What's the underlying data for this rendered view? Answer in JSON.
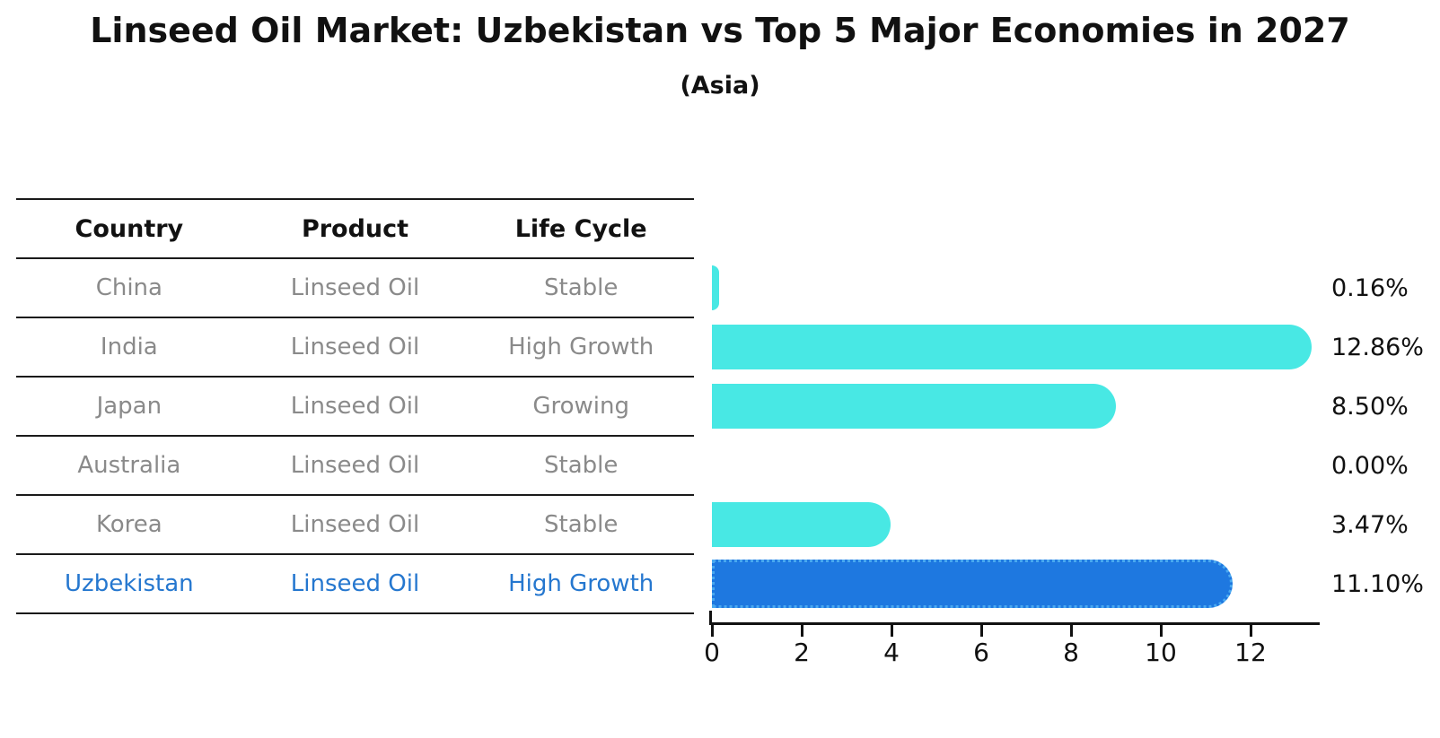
{
  "header": {
    "title": "Linseed Oil Market: Uzbekistan vs Top 5 Major Economies in 2027",
    "subtitle": "(Asia)"
  },
  "table": {
    "headers": [
      "Country",
      "Product",
      "Life Cycle"
    ],
    "rows": [
      {
        "country": "China",
        "product": "Linseed Oil",
        "life_cycle": "Stable",
        "highlight": false
      },
      {
        "country": "India",
        "product": "Linseed Oil",
        "life_cycle": "High Growth",
        "highlight": false
      },
      {
        "country": "Japan",
        "product": "Linseed Oil",
        "life_cycle": "Growing",
        "highlight": false
      },
      {
        "country": "Australia",
        "product": "Linseed Oil",
        "life_cycle": "Stable",
        "highlight": false
      },
      {
        "country": "Korea",
        "product": "Linseed Oil",
        "life_cycle": "Stable",
        "highlight": false
      },
      {
        "country": "Uzbekistan",
        "product": "Linseed Oil",
        "life_cycle": "High Growth",
        "highlight": true
      }
    ]
  },
  "chart_data": {
    "type": "bar",
    "orientation": "horizontal",
    "title": "Linseed Oil Market: Uzbekistan vs Top 5 Major Economies in 2027",
    "subtitle": "(Asia)",
    "categories": [
      "China",
      "India",
      "Japan",
      "Australia",
      "Korea",
      "Uzbekistan"
    ],
    "values": [
      0.16,
      12.86,
      8.5,
      0.0,
      3.47,
      11.1
    ],
    "value_labels": [
      "0.16%",
      "12.86%",
      "8.50%",
      "0.00%",
      "3.47%",
      "11.10%"
    ],
    "x_ticks": [
      0,
      2,
      4,
      6,
      8,
      10,
      12
    ],
    "xlim": [
      0,
      13.5
    ],
    "grid": false,
    "legend": false,
    "bar_color": "#48e8e4",
    "highlight_color": "#1e78e0",
    "highlight_index": 5,
    "highlight_edge_style": "dotted"
  }
}
